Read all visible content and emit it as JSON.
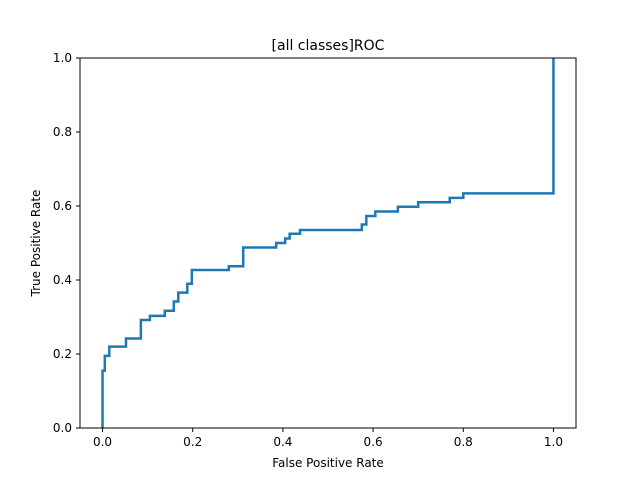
{
  "chart_data": {
    "type": "line",
    "title": "[all classes]ROC",
    "xlabel": "False Positive Rate",
    "ylabel": "True Positive Rate",
    "xlim": [
      -0.05,
      1.05
    ],
    "ylim": [
      0.0,
      1.0
    ],
    "x_ticks": [
      "0.0",
      "0.2",
      "0.4",
      "0.6",
      "0.8",
      "1.0"
    ],
    "y_ticks": [
      "0.0",
      "0.2",
      "0.4",
      "0.6",
      "0.8",
      "1.0"
    ],
    "grid": false,
    "legend": "none",
    "line_color": "#1f77b4",
    "series": [
      {
        "x": [
          0.0,
          0.0,
          0.005,
          0.005,
          0.015,
          0.015,
          0.025,
          0.025,
          0.052,
          0.052,
          0.085,
          0.085,
          0.105,
          0.105,
          0.138,
          0.138,
          0.158,
          0.158,
          0.168,
          0.168,
          0.188,
          0.188,
          0.198,
          0.198,
          0.28,
          0.28,
          0.312,
          0.312,
          0.385,
          0.385,
          0.405,
          0.405,
          0.415,
          0.415,
          0.438,
          0.438,
          0.575,
          0.575,
          0.585,
          0.585,
          0.605,
          0.605,
          0.655,
          0.655,
          0.7,
          0.7,
          0.77,
          0.77,
          0.8,
          0.8,
          1.0,
          1.0
        ],
        "y": [
          0.0,
          0.155,
          0.155,
          0.195,
          0.195,
          0.22,
          0.22,
          0.22,
          0.22,
          0.242,
          0.242,
          0.292,
          0.292,
          0.303,
          0.303,
          0.317,
          0.317,
          0.342,
          0.342,
          0.366,
          0.366,
          0.39,
          0.39,
          0.427,
          0.427,
          0.437,
          0.437,
          0.488,
          0.488,
          0.5,
          0.5,
          0.512,
          0.512,
          0.525,
          0.525,
          0.535,
          0.535,
          0.55,
          0.55,
          0.573,
          0.573,
          0.585,
          0.585,
          0.598,
          0.598,
          0.61,
          0.61,
          0.622,
          0.622,
          0.634,
          0.634,
          1.0
        ]
      }
    ]
  }
}
